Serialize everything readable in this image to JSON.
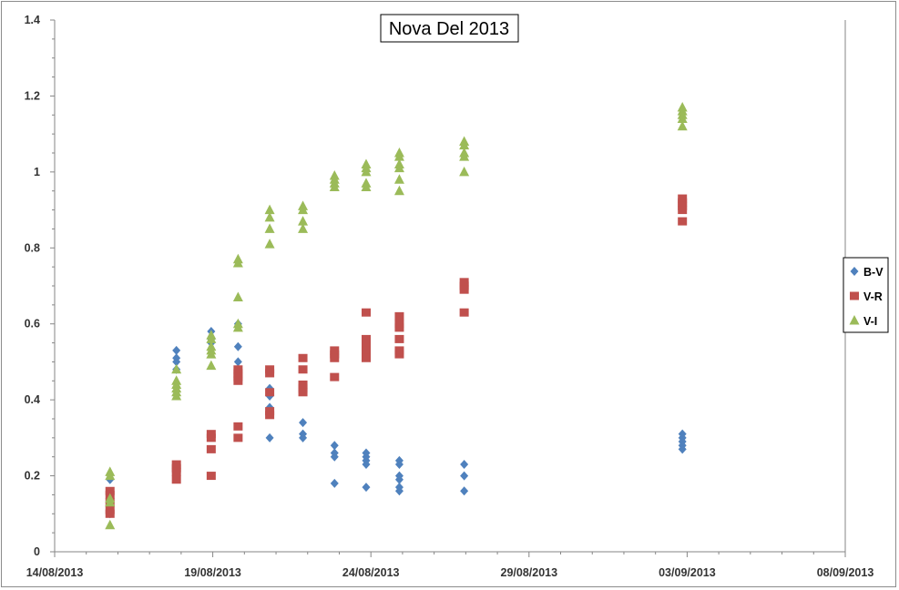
{
  "chart_data": {
    "type": "scatter",
    "title": "Nova Del 2013",
    "xlabel": "",
    "ylabel": "",
    "x_axis": {
      "type": "date",
      "min": "2013-08-14",
      "max": "2013-09-08",
      "tick_labels": [
        "14/08/2013",
        "19/08/2013",
        "24/08/2013",
        "29/08/2013",
        "03/09/2013",
        "08/09/2013"
      ]
    },
    "ylim": [
      0,
      1.4
    ],
    "y_tick_labels": [
      "0",
      "0.2",
      "0.4",
      "0.6",
      "0.8",
      "1",
      "1.2",
      "1.4"
    ],
    "grid": false,
    "legend_position": "right",
    "series": [
      {
        "name": "B-V",
        "color": "#4f81bd",
        "marker": "diamond",
        "points": [
          {
            "x": "2013-08-15.75",
            "y": 0.19
          },
          {
            "x": "2013-08-15.75",
            "y": 0.14
          },
          {
            "x": "2013-08-15.75",
            "y": 0.12
          },
          {
            "x": "2013-08-15.75",
            "y": 0.1
          },
          {
            "x": "2013-08-17.85",
            "y": 0.53
          },
          {
            "x": "2013-08-17.85",
            "y": 0.51
          },
          {
            "x": "2013-08-17.85",
            "y": 0.5
          },
          {
            "x": "2013-08-17.85",
            "y": 0.48
          },
          {
            "x": "2013-08-18.95",
            "y": 0.58
          },
          {
            "x": "2013-08-18.95",
            "y": 0.56
          },
          {
            "x": "2013-08-18.95",
            "y": 0.55
          },
          {
            "x": "2013-08-19.80",
            "y": 0.6
          },
          {
            "x": "2013-08-19.80",
            "y": 0.54
          },
          {
            "x": "2013-08-19.80",
            "y": 0.5
          },
          {
            "x": "2013-08-19.80",
            "y": 0.46
          },
          {
            "x": "2013-08-20.80",
            "y": 0.43
          },
          {
            "x": "2013-08-20.80",
            "y": 0.41
          },
          {
            "x": "2013-08-20.80",
            "y": 0.38
          },
          {
            "x": "2013-08-20.80",
            "y": 0.3
          },
          {
            "x": "2013-08-21.85",
            "y": 0.34
          },
          {
            "x": "2013-08-21.85",
            "y": 0.31
          },
          {
            "x": "2013-08-21.85",
            "y": 0.3
          },
          {
            "x": "2013-08-22.85",
            "y": 0.28
          },
          {
            "x": "2013-08-22.85",
            "y": 0.26
          },
          {
            "x": "2013-08-22.85",
            "y": 0.25
          },
          {
            "x": "2013-08-22.85",
            "y": 0.18
          },
          {
            "x": "2013-08-23.85",
            "y": 0.26
          },
          {
            "x": "2013-08-23.85",
            "y": 0.25
          },
          {
            "x": "2013-08-23.85",
            "y": 0.24
          },
          {
            "x": "2013-08-23.85",
            "y": 0.23
          },
          {
            "x": "2013-08-23.85",
            "y": 0.17
          },
          {
            "x": "2013-08-24.90",
            "y": 0.24
          },
          {
            "x": "2013-08-24.90",
            "y": 0.23
          },
          {
            "x": "2013-08-24.90",
            "y": 0.2
          },
          {
            "x": "2013-08-24.90",
            "y": 0.19
          },
          {
            "x": "2013-08-24.90",
            "y": 0.17
          },
          {
            "x": "2013-08-24.90",
            "y": 0.16
          },
          {
            "x": "2013-08-26.95",
            "y": 0.23
          },
          {
            "x": "2013-08-26.95",
            "y": 0.2
          },
          {
            "x": "2013-08-26.95",
            "y": 0.16
          },
          {
            "x": "2013-09-02.85",
            "y": 0.31
          },
          {
            "x": "2013-09-02.85",
            "y": 0.3
          },
          {
            "x": "2013-09-02.85",
            "y": 0.29
          },
          {
            "x": "2013-09-02.85",
            "y": 0.28
          },
          {
            "x": "2013-09-02.85",
            "y": 0.27
          }
        ]
      },
      {
        "name": "V-R",
        "color": "#c0504d",
        "marker": "square",
        "points": [
          {
            "x": "2013-08-15.75",
            "y": 0.16
          },
          {
            "x": "2013-08-15.75",
            "y": 0.15
          },
          {
            "x": "2013-08-15.75",
            "y": 0.13
          },
          {
            "x": "2013-08-15.75",
            "y": 0.11
          },
          {
            "x": "2013-08-15.75",
            "y": 0.1
          },
          {
            "x": "2013-08-17.85",
            "y": 0.23
          },
          {
            "x": "2013-08-17.85",
            "y": 0.22
          },
          {
            "x": "2013-08-17.85",
            "y": 0.21
          },
          {
            "x": "2013-08-17.85",
            "y": 0.19
          },
          {
            "x": "2013-08-18.95",
            "y": 0.31
          },
          {
            "x": "2013-08-18.95",
            "y": 0.3
          },
          {
            "x": "2013-08-18.95",
            "y": 0.27
          },
          {
            "x": "2013-08-18.95",
            "y": 0.2
          },
          {
            "x": "2013-08-19.80",
            "y": 0.48
          },
          {
            "x": "2013-08-19.80",
            "y": 0.47
          },
          {
            "x": "2013-08-19.80",
            "y": 0.46
          },
          {
            "x": "2013-08-19.80",
            "y": 0.45
          },
          {
            "x": "2013-08-19.80",
            "y": 0.33
          },
          {
            "x": "2013-08-19.80",
            "y": 0.3
          },
          {
            "x": "2013-08-20.80",
            "y": 0.48
          },
          {
            "x": "2013-08-20.80",
            "y": 0.47
          },
          {
            "x": "2013-08-20.80",
            "y": 0.42
          },
          {
            "x": "2013-08-20.80",
            "y": 0.37
          },
          {
            "x": "2013-08-20.80",
            "y": 0.36
          },
          {
            "x": "2013-08-21.85",
            "y": 0.51
          },
          {
            "x": "2013-08-21.85",
            "y": 0.48
          },
          {
            "x": "2013-08-21.85",
            "y": 0.44
          },
          {
            "x": "2013-08-21.85",
            "y": 0.43
          },
          {
            "x": "2013-08-21.85",
            "y": 0.42
          },
          {
            "x": "2013-08-22.85",
            "y": 0.53
          },
          {
            "x": "2013-08-22.85",
            "y": 0.52
          },
          {
            "x": "2013-08-22.85",
            "y": 0.51
          },
          {
            "x": "2013-08-22.85",
            "y": 0.46
          },
          {
            "x": "2013-08-23.85",
            "y": 0.63
          },
          {
            "x": "2013-08-23.85",
            "y": 0.56
          },
          {
            "x": "2013-08-23.85",
            "y": 0.54
          },
          {
            "x": "2013-08-23.85",
            "y": 0.53
          },
          {
            "x": "2013-08-23.85",
            "y": 0.51
          },
          {
            "x": "2013-08-24.90",
            "y": 0.62
          },
          {
            "x": "2013-08-24.90",
            "y": 0.6
          },
          {
            "x": "2013-08-24.90",
            "y": 0.59
          },
          {
            "x": "2013-08-24.90",
            "y": 0.56
          },
          {
            "x": "2013-08-24.90",
            "y": 0.53
          },
          {
            "x": "2013-08-24.90",
            "y": 0.52
          },
          {
            "x": "2013-08-26.95",
            "y": 0.71
          },
          {
            "x": "2013-08-26.95",
            "y": 0.7
          },
          {
            "x": "2013-08-26.95",
            "y": 0.69
          },
          {
            "x": "2013-08-26.95",
            "y": 0.63
          },
          {
            "x": "2013-09-02.85",
            "y": 0.93
          },
          {
            "x": "2013-09-02.85",
            "y": 0.92
          },
          {
            "x": "2013-09-02.85",
            "y": 0.91
          },
          {
            "x": "2013-09-02.85",
            "y": 0.9
          },
          {
            "x": "2013-09-02.85",
            "y": 0.87
          }
        ]
      },
      {
        "name": "V-I",
        "color": "#9bbb59",
        "marker": "triangle",
        "points": [
          {
            "x": "2013-08-15.75",
            "y": 0.21
          },
          {
            "x": "2013-08-15.75",
            "y": 0.2
          },
          {
            "x": "2013-08-15.75",
            "y": 0.14
          },
          {
            "x": "2013-08-15.75",
            "y": 0.13
          },
          {
            "x": "2013-08-15.75",
            "y": 0.07
          },
          {
            "x": "2013-08-17.85",
            "y": 0.48
          },
          {
            "x": "2013-08-17.85",
            "y": 0.45
          },
          {
            "x": "2013-08-17.85",
            "y": 0.44
          },
          {
            "x": "2013-08-17.85",
            "y": 0.43
          },
          {
            "x": "2013-08-17.85",
            "y": 0.42
          },
          {
            "x": "2013-08-17.85",
            "y": 0.41
          },
          {
            "x": "2013-08-18.95",
            "y": 0.57
          },
          {
            "x": "2013-08-18.95",
            "y": 0.56
          },
          {
            "x": "2013-08-18.95",
            "y": 0.54
          },
          {
            "x": "2013-08-18.95",
            "y": 0.53
          },
          {
            "x": "2013-08-18.95",
            "y": 0.52
          },
          {
            "x": "2013-08-18.95",
            "y": 0.49
          },
          {
            "x": "2013-08-19.80",
            "y": 0.77
          },
          {
            "x": "2013-08-19.80",
            "y": 0.76
          },
          {
            "x": "2013-08-19.80",
            "y": 0.67
          },
          {
            "x": "2013-08-19.80",
            "y": 0.6
          },
          {
            "x": "2013-08-19.80",
            "y": 0.59
          },
          {
            "x": "2013-08-20.80",
            "y": 0.9
          },
          {
            "x": "2013-08-20.80",
            "y": 0.88
          },
          {
            "x": "2013-08-20.80",
            "y": 0.85
          },
          {
            "x": "2013-08-20.80",
            "y": 0.81
          },
          {
            "x": "2013-08-21.85",
            "y": 0.91
          },
          {
            "x": "2013-08-21.85",
            "y": 0.9
          },
          {
            "x": "2013-08-21.85",
            "y": 0.87
          },
          {
            "x": "2013-08-21.85",
            "y": 0.85
          },
          {
            "x": "2013-08-22.85",
            "y": 0.99
          },
          {
            "x": "2013-08-22.85",
            "y": 0.98
          },
          {
            "x": "2013-08-22.85",
            "y": 0.97
          },
          {
            "x": "2013-08-22.85",
            "y": 0.96
          },
          {
            "x": "2013-08-23.85",
            "y": 1.02
          },
          {
            "x": "2013-08-23.85",
            "y": 1.01
          },
          {
            "x": "2013-08-23.85",
            "y": 1.0
          },
          {
            "x": "2013-08-23.85",
            "y": 0.97
          },
          {
            "x": "2013-08-23.85",
            "y": 0.96
          },
          {
            "x": "2013-08-24.90",
            "y": 1.05
          },
          {
            "x": "2013-08-24.90",
            "y": 1.04
          },
          {
            "x": "2013-08-24.90",
            "y": 1.02
          },
          {
            "x": "2013-08-24.90",
            "y": 1.01
          },
          {
            "x": "2013-08-24.90",
            "y": 0.98
          },
          {
            "x": "2013-08-24.90",
            "y": 0.95
          },
          {
            "x": "2013-08-26.95",
            "y": 1.08
          },
          {
            "x": "2013-08-26.95",
            "y": 1.07
          },
          {
            "x": "2013-08-26.95",
            "y": 1.05
          },
          {
            "x": "2013-08-26.95",
            "y": 1.04
          },
          {
            "x": "2013-08-26.95",
            "y": 1.0
          },
          {
            "x": "2013-09-02.85",
            "y": 1.17
          },
          {
            "x": "2013-09-02.85",
            "y": 1.16
          },
          {
            "x": "2013-09-02.85",
            "y": 1.15
          },
          {
            "x": "2013-09-02.85",
            "y": 1.14
          },
          {
            "x": "2013-09-02.85",
            "y": 1.12
          }
        ]
      }
    ]
  }
}
